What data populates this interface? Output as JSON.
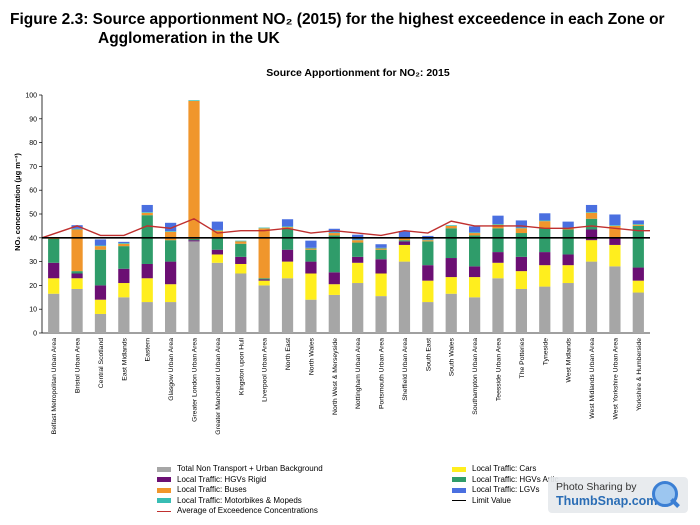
{
  "figure": {
    "title_line1": "Figure 2.3: Source apportionment NO₂ (2015) for the highest exceedence in each Zone or",
    "title_line2": "Agglomeration in the UK"
  },
  "watermark": {
    "line1": "Photo Sharing by",
    "line2": "ThumbSnap.com"
  },
  "colors": {
    "background": "#a6a6a6",
    "hgv_rigid": "#6b0f73",
    "buses": "#f0962c",
    "motorbikes": "#38bdb4",
    "cars": "#ffee1e",
    "hgv_artic": "#2f9c6a",
    "lgvs": "#4a6fe0",
    "average": "#c0302f",
    "limit": "#000000"
  },
  "chart_data": {
    "type": "bar",
    "stacked": true,
    "title": "Source Apportionment  for NO₂: 2015",
    "ylabel": "NO₂ concentration (μg m⁻³)",
    "xlabel": "",
    "ylim": [
      0,
      100
    ],
    "yticks": [
      0,
      10,
      20,
      30,
      40,
      50,
      60,
      70,
      80,
      90,
      100
    ],
    "categories": [
      "Belfast Metropolitan Urban Area",
      "Bristol Urban Area",
      "Central Scotland",
      "East Midlands",
      "Eastern",
      "Glasgow Urban Area",
      "Greater London Urban Area",
      "Greater Manchester Urban Area",
      "Kingston upon Hull",
      "Liverpool Urban Area",
      "North East",
      "North Wales",
      "North West & Merseyside",
      "Nottingham Urban Area",
      "Portsmouth Urban Area",
      "Sheffield Urban Area",
      "South East",
      "South Wales",
      "Southampton Urban Area",
      "Teesside Urban Area",
      "The Potteries",
      "Tyneside",
      "West Midlands",
      "West Midlands Urban Area",
      "West Yorkshire Urban Area",
      "Yorkshire & Humberside"
    ],
    "series": [
      {
        "name": "Total Non Transport + Urban Background",
        "color_key": "background",
        "values": [
          16.5,
          18.5,
          8,
          15,
          13,
          13,
          38.5,
          29.5,
          25,
          20,
          23,
          14,
          16,
          21,
          15.5,
          30,
          13,
          16.5,
          15,
          23,
          18.5,
          19.5,
          21,
          30,
          28,
          17
        ]
      },
      {
        "name": "Local Traffic: Cars",
        "color_key": "cars",
        "values": [
          6.5,
          4.5,
          6,
          6,
          10,
          7.5,
          0,
          3.5,
          4,
          2,
          7,
          11,
          4.5,
          8.5,
          9.5,
          7,
          9,
          7,
          8.5,
          6.5,
          7.5,
          9,
          7.5,
          9,
          9,
          5
        ]
      },
      {
        "name": "Local Traffic: HGVs Rigid",
        "color_key": "hgv_rigid",
        "values": [
          6.5,
          2,
          6,
          6,
          6,
          9.5,
          0.5,
          2,
          3,
          0.5,
          5,
          5,
          5,
          2.5,
          6,
          1.5,
          6.5,
          8,
          4.5,
          4.5,
          6,
          5.5,
          4.5,
          4.5,
          3,
          5.5
        ]
      },
      {
        "name": "Local Traffic: HGVs Artic",
        "color_key": "hgv_artic",
        "values": [
          10,
          1,
          15,
          9.5,
          20.5,
          9,
          0.5,
          5,
          5.5,
          0.5,
          9,
          5,
          15.5,
          6,
          4,
          0.5,
          10,
          12.5,
          13,
          10,
          10,
          10,
          10.5,
          4.5,
          0,
          17.5
        ]
      },
      {
        "name": "Local Traffic: Buses",
        "color_key": "buses",
        "values": [
          0.5,
          17.5,
          1.5,
          1,
          1,
          3.5,
          58,
          3,
          1,
          21,
          0.5,
          0.5,
          1,
          1,
          0.5,
          1,
          0.5,
          1,
          1,
          1.5,
          2,
          3,
          0.5,
          2.5,
          5,
          0.5
        ]
      },
      {
        "name": "Local Traffic: Motorbikes & Mopeds",
        "color_key": "motorbikes",
        "values": [
          0.3,
          0.3,
          0.3,
          0.3,
          0.3,
          0.3,
          0.3,
          0.3,
          0.3,
          0.3,
          0.3,
          0.3,
          0.3,
          0.3,
          0.3,
          0.3,
          0.3,
          0.3,
          0.3,
          0.3,
          0.3,
          0.3,
          0.3,
          0.3,
          0.3,
          0.3
        ]
      },
      {
        "name": "Local Traffic: LGVs",
        "color_key": "lgvs",
        "values": [
          0,
          1.5,
          2.5,
          0.5,
          3,
          3.5,
          0,
          3.5,
          0,
          0,
          3,
          3,
          1.5,
          2,
          1.5,
          2.5,
          1.5,
          0,
          2.5,
          3.5,
          3,
          3,
          2.5,
          3,
          4.5,
          1.5
        ]
      }
    ],
    "lines": [
      {
        "name": "Average of Exceedence Concentrations",
        "color_key": "average",
        "values": [
          40,
          45,
          41,
          41,
          45,
          44,
          48,
          42,
          43,
          43,
          44,
          42,
          43,
          42,
          41,
          43,
          42,
          47,
          45,
          45,
          45,
          44,
          44,
          45,
          44,
          43
        ]
      },
      {
        "name": "Limit Value",
        "color_key": "limit",
        "values": [
          40,
          40,
          40,
          40,
          40,
          40,
          40,
          40,
          40,
          40,
          40,
          40,
          40,
          40,
          40,
          40,
          40,
          40,
          40,
          40,
          40,
          40,
          40,
          40,
          40,
          40
        ]
      }
    ],
    "legend": {
      "placement": "bottom",
      "left": [
        {
          "label": "Total Non Transport + Urban Background",
          "color_key": "background",
          "kind": "box"
        },
        {
          "label": "Local Traffic: HGVs Rigid",
          "color_key": "hgv_rigid",
          "kind": "box"
        },
        {
          "label": "Local Traffic: Buses",
          "color_key": "buses",
          "kind": "box"
        },
        {
          "label": "Local Traffic: Motorbikes & Mopeds",
          "color_key": "motorbikes",
          "kind": "box"
        },
        {
          "label": "Average of Exceedence Concentrations",
          "color_key": "average",
          "kind": "line"
        }
      ],
      "right": [
        {
          "label": "Local Traffic: Cars",
          "color_key": "cars",
          "kind": "box"
        },
        {
          "label": "Local Traffic: HGVs Artic",
          "color_key": "hgv_artic",
          "kind": "box"
        },
        {
          "label": "Local Traffic: LGVs",
          "color_key": "lgvs",
          "kind": "box"
        },
        {
          "label": "Limit Value",
          "color_key": "limit",
          "kind": "line"
        }
      ]
    },
    "grid": false
  }
}
